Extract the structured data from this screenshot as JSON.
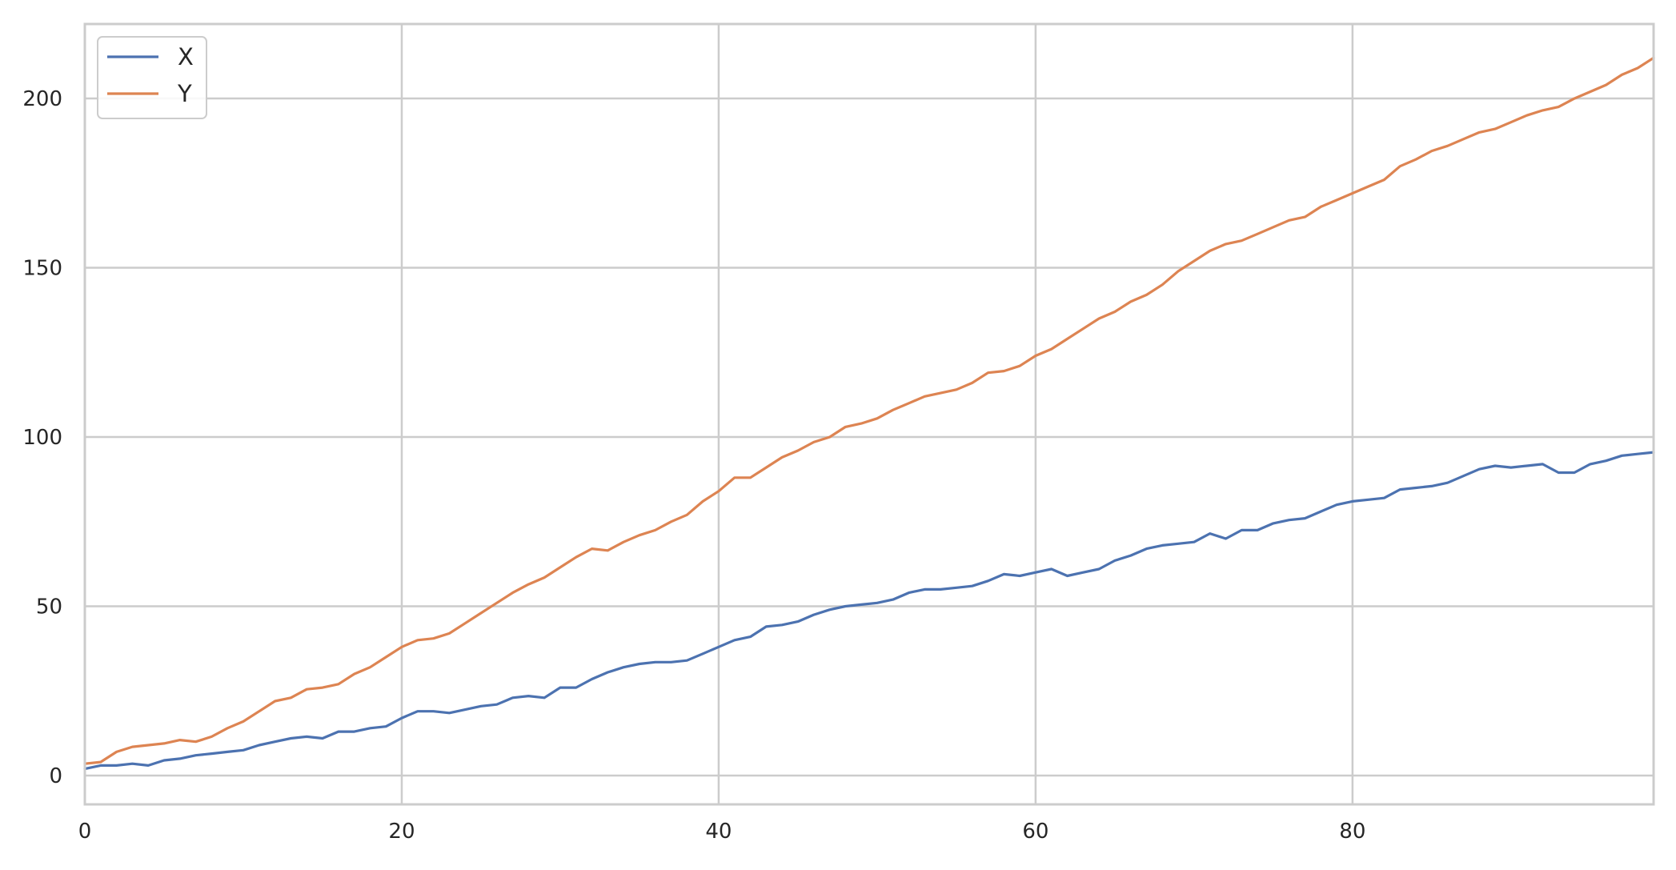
{
  "chart_data": {
    "type": "line",
    "title": "",
    "xlabel": "",
    "ylabel": "",
    "xlim": [
      0,
      99
    ],
    "ylim": [
      -8.5,
      222
    ],
    "xticks": [
      0,
      20,
      40,
      60,
      80
    ],
    "yticks": [
      0,
      50,
      100,
      150,
      200
    ],
    "grid": true,
    "legend_position": "top-left",
    "x": [
      0,
      1,
      2,
      3,
      4,
      5,
      6,
      7,
      8,
      9,
      10,
      11,
      12,
      13,
      14,
      15,
      16,
      17,
      18,
      19,
      20,
      21,
      22,
      23,
      24,
      25,
      26,
      27,
      28,
      29,
      30,
      31,
      32,
      33,
      34,
      35,
      36,
      37,
      38,
      39,
      40,
      41,
      42,
      43,
      44,
      45,
      46,
      47,
      48,
      49,
      50,
      51,
      52,
      53,
      54,
      55,
      56,
      57,
      58,
      59,
      60,
      61,
      62,
      63,
      64,
      65,
      66,
      67,
      68,
      69,
      70,
      71,
      72,
      73,
      74,
      75,
      76,
      77,
      78,
      79,
      80,
      81,
      82,
      83,
      84,
      85,
      86,
      87,
      88,
      89,
      90,
      91,
      92,
      93,
      94,
      95,
      96,
      97,
      98,
      99
    ],
    "series": [
      {
        "name": "X",
        "color": "#4c72b0",
        "values": [
          2,
          3,
          3,
          3.5,
          3,
          4.5,
          5,
          6,
          6.5,
          7,
          7.5,
          9,
          10,
          11,
          11.5,
          11,
          13,
          13,
          14,
          14.5,
          17,
          19,
          19,
          18.5,
          19.5,
          20.5,
          21,
          23,
          23.5,
          23,
          26,
          26,
          28.5,
          30.5,
          32,
          33,
          33.5,
          33.5,
          34,
          36,
          38,
          40,
          41,
          44,
          44.5,
          45.5,
          47.5,
          49,
          50,
          50.5,
          51,
          52,
          54,
          55,
          55,
          55.5,
          56,
          57.5,
          59.5,
          59,
          60,
          61,
          59,
          60,
          61,
          63.5,
          65,
          67,
          68,
          68.5,
          69,
          71.5,
          70,
          72.5,
          72.5,
          74.5,
          75.5,
          76,
          78,
          80,
          81,
          81.5,
          82,
          84.5,
          85,
          85.5,
          86.5,
          88.5,
          90.5,
          91.5,
          91,
          91.5,
          92,
          89.5,
          89.5,
          92,
          93,
          94.5,
          95,
          95.5
        ]
      },
      {
        "name": "Y",
        "color": "#dd8452",
        "values": [
          3.5,
          4,
          7,
          8.5,
          9,
          9.5,
          10.5,
          10,
          11.5,
          14,
          16,
          19,
          22,
          23,
          25.5,
          26,
          27,
          30,
          32,
          35,
          38,
          40,
          40.5,
          42,
          45,
          48,
          51,
          54,
          56.5,
          58.5,
          61.5,
          64.5,
          67,
          66.5,
          69,
          71,
          72.5,
          75,
          77,
          81,
          84,
          88,
          88,
          91,
          94,
          96,
          98.5,
          100,
          103,
          104,
          105.5,
          108,
          110,
          112,
          113,
          114,
          116,
          119,
          119.5,
          121,
          124,
          126,
          129,
          132,
          135,
          137,
          140,
          142,
          145,
          149,
          152,
          155,
          157,
          158,
          160,
          162,
          164,
          165,
          168,
          170,
          172,
          174,
          176,
          180,
          182,
          184.5,
          186,
          188,
          190,
          191,
          193,
          195,
          196.5,
          197.5,
          200,
          202,
          204,
          207,
          209,
          212
        ]
      }
    ]
  }
}
